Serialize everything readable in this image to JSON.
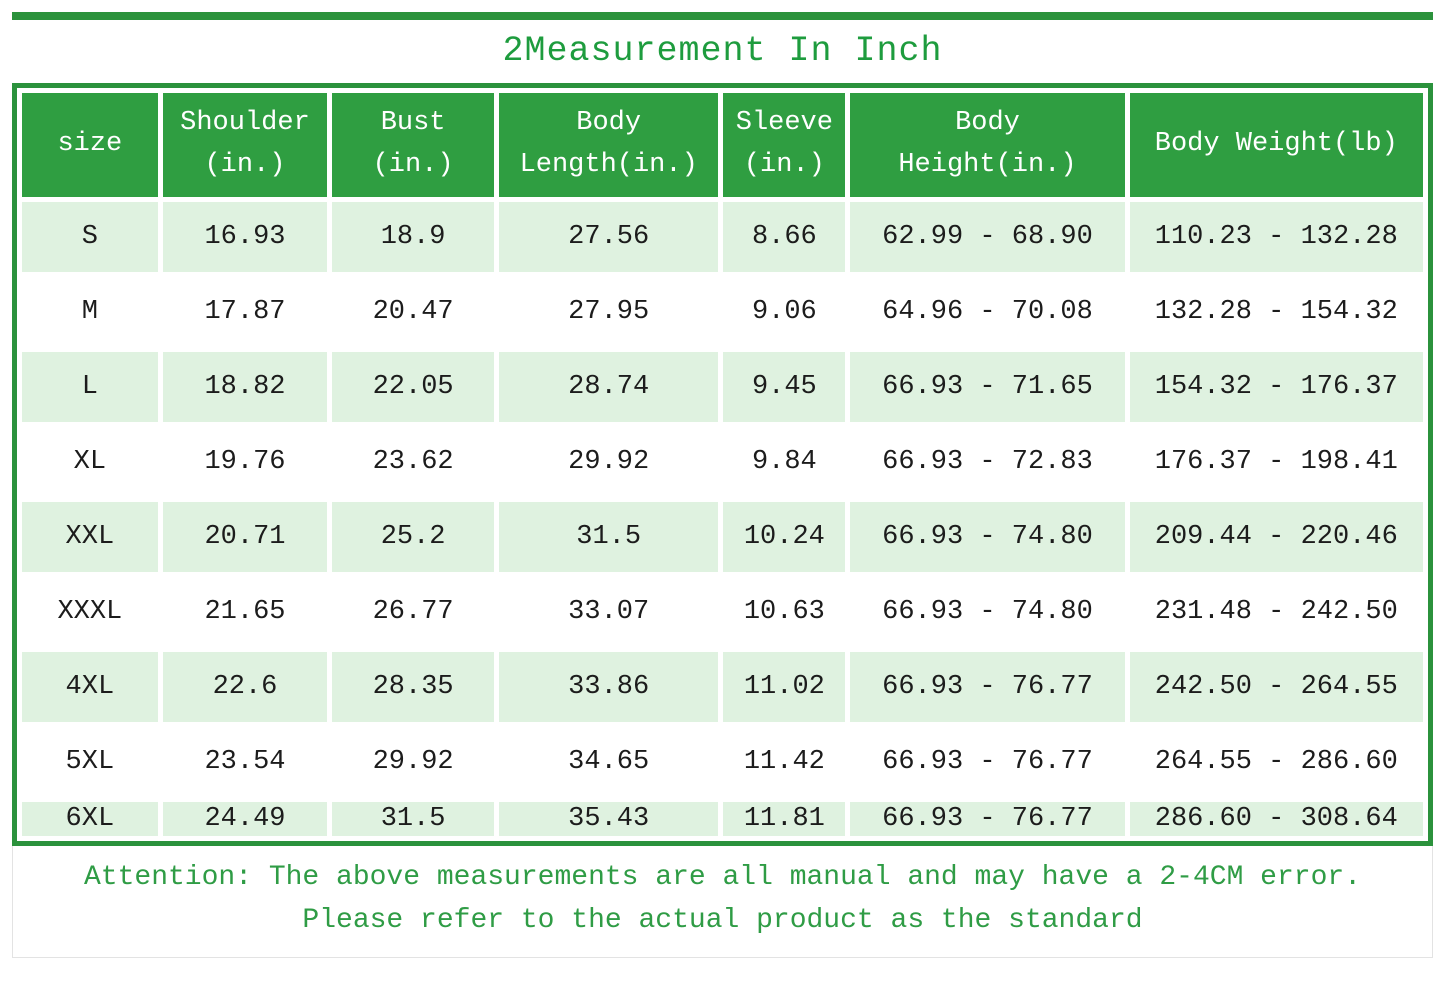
{
  "title": "2Measurement In Inch",
  "table": {
    "headers": [
      "size",
      "Shoulder\n(in.)",
      "Bust\n(in.)",
      "Body\nLength(in.)",
      "Sleeve\n(in.)",
      "Body\nHeight(in.)",
      "Body Weight(lb)"
    ],
    "col_widths": [
      "9.9%",
      "12%",
      "11.8%",
      "16%",
      "8.9%",
      "20%",
      "21.4%"
    ],
    "rows": [
      [
        "S",
        "16.93",
        "18.9",
        "27.56",
        "8.66",
        "62.99 - 68.90",
        "110.23 - 132.28"
      ],
      [
        "M",
        "17.87",
        "20.47",
        "27.95",
        "9.06",
        "64.96 - 70.08",
        "132.28 - 154.32"
      ],
      [
        "L",
        "18.82",
        "22.05",
        "28.74",
        "9.45",
        "66.93 - 71.65",
        "154.32 - 176.37"
      ],
      [
        "XL",
        "19.76",
        "23.62",
        "29.92",
        "9.84",
        "66.93 - 72.83",
        "176.37 - 198.41"
      ],
      [
        "XXL",
        "20.71",
        "25.2",
        "31.5",
        "10.24",
        "66.93 - 74.80",
        "209.44 - 220.46"
      ],
      [
        "XXXL",
        "21.65",
        "26.77",
        "33.07",
        "10.63",
        "66.93 - 74.80",
        "231.48 - 242.50"
      ],
      [
        "4XL",
        "22.6",
        "28.35",
        "33.86",
        "11.02",
        "66.93 - 76.77",
        "242.50 - 264.55"
      ],
      [
        "5XL",
        "23.54",
        "29.92",
        "34.65",
        "11.42",
        "66.93 - 76.77",
        "264.55 - 286.60"
      ],
      [
        "6XL",
        "24.49",
        "31.5",
        "35.43",
        "11.81",
        "66.93 - 76.77",
        "286.60 - 308.64"
      ]
    ]
  },
  "footer": {
    "line1": "Attention: The above measurements are all manual and may have a 2-4CM error.",
    "line2": "Please refer to the actual product as the standard"
  },
  "colors": {
    "header_green": "#2F9E41",
    "border_green": "#2B923C",
    "row_green": "#DFF2E0",
    "title_green": "#1E9C3E",
    "footer_green": "#2F9C45"
  }
}
